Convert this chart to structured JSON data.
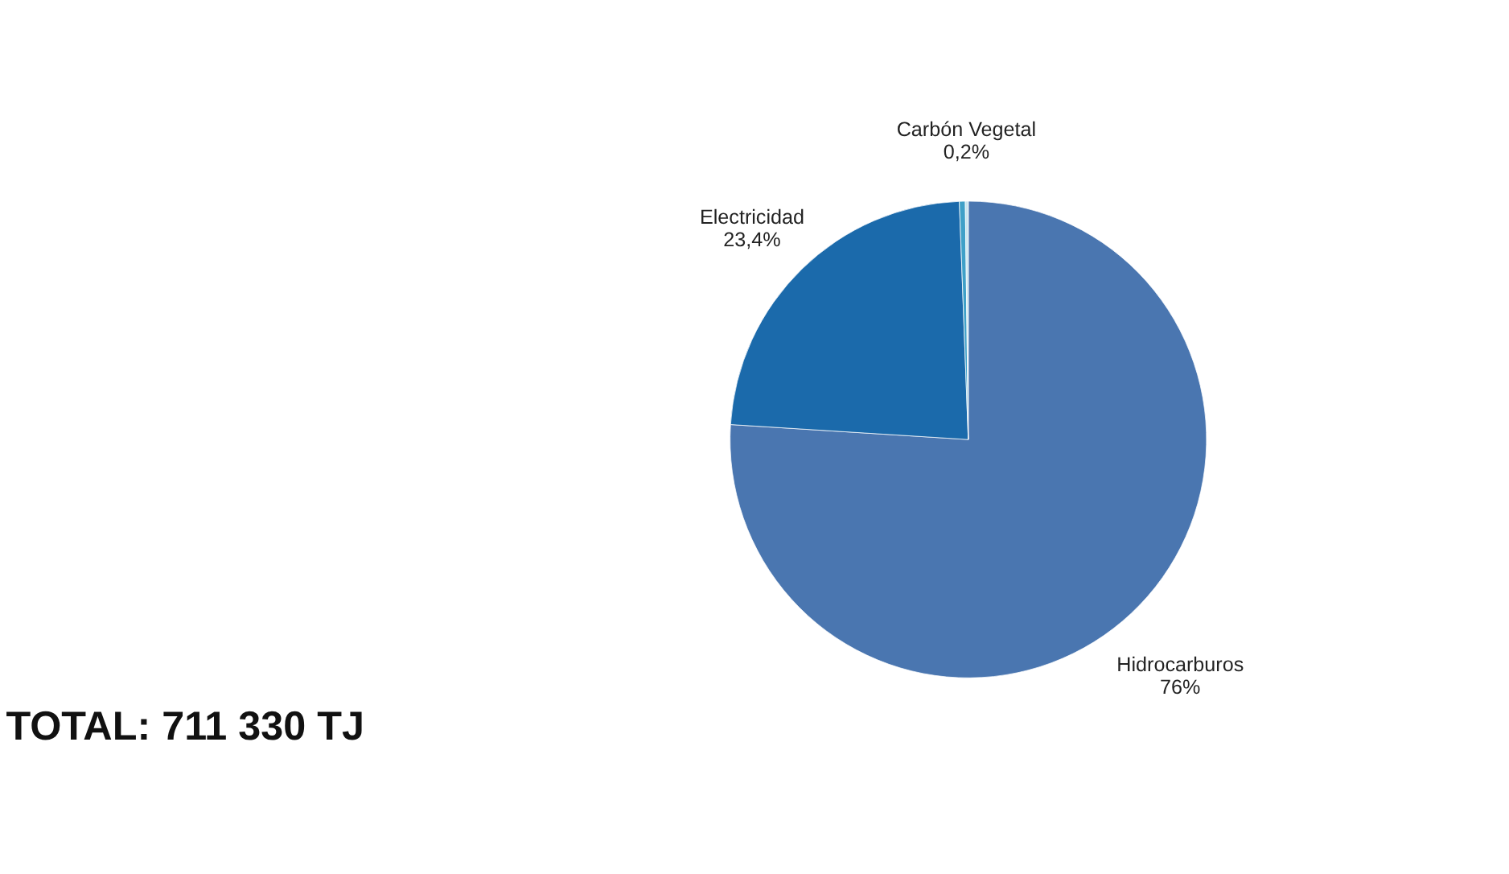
{
  "chart_data": {
    "type": "pie",
    "categories": [
      "Hidrocarburos",
      "Electricidad",
      null,
      "Carbón Vegetal"
    ],
    "values": [
      76,
      23.4,
      0.4,
      0.2
    ],
    "value_labels": [
      "76%",
      "23,4%",
      null,
      "0,2%"
    ],
    "colors": [
      "#4a76b0",
      "#1b6aab",
      "#3fa0c8",
      "#c9e6f0"
    ],
    "legend": false,
    "annotations": [
      "TOTAL:   711 330 TJ"
    ]
  }
}
